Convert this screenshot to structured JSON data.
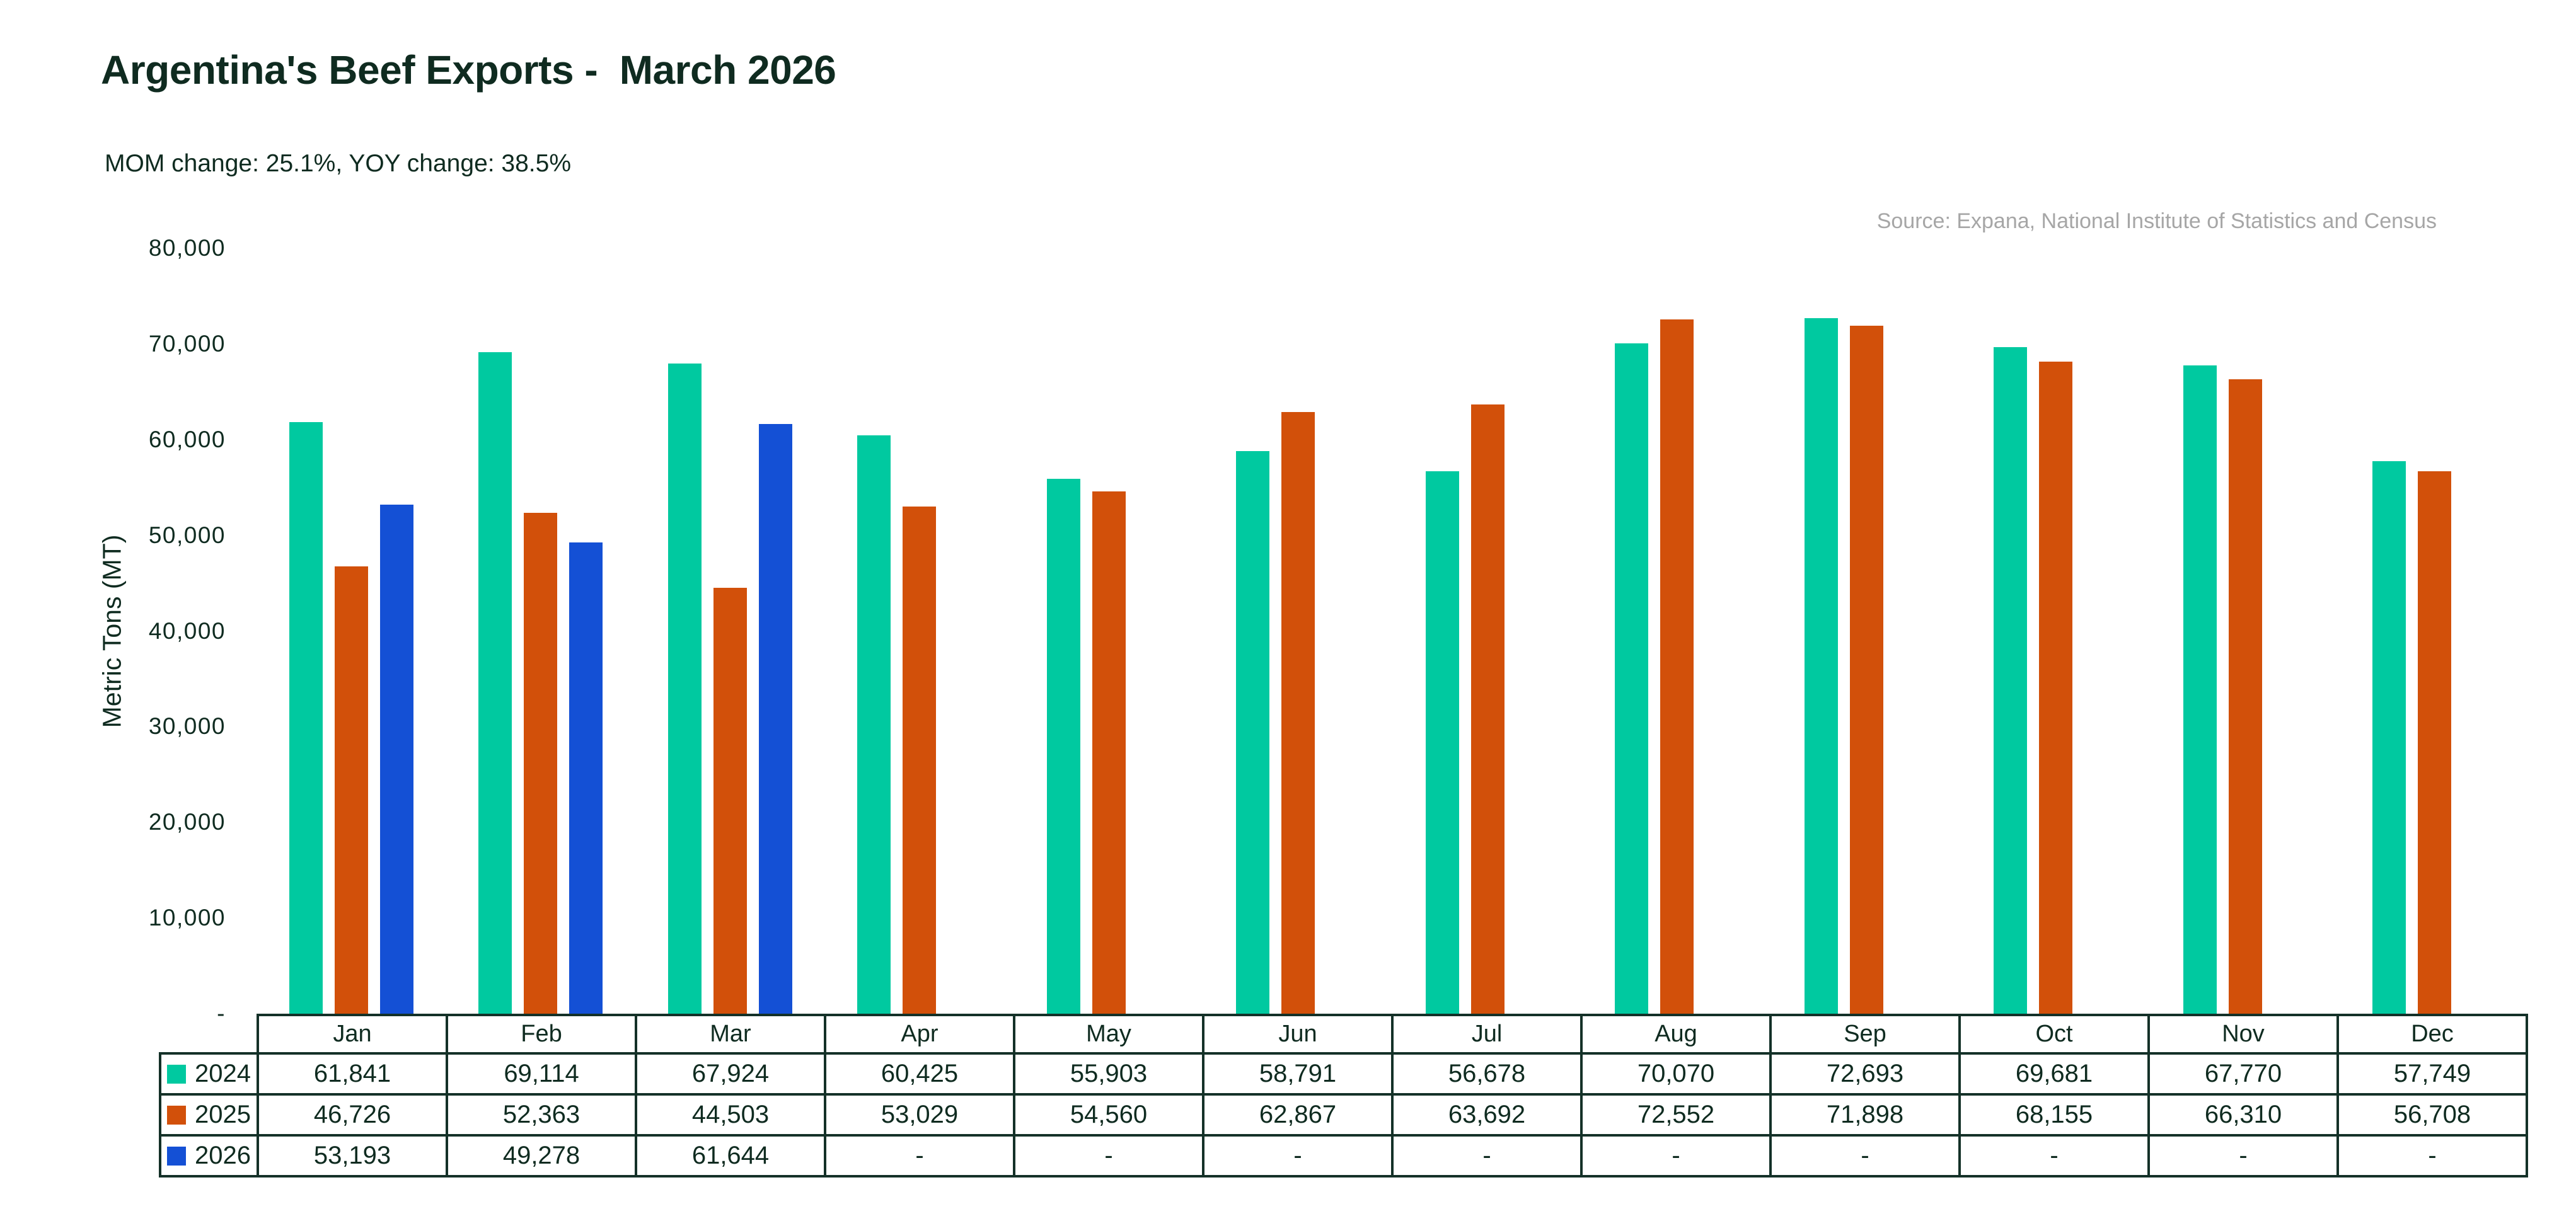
{
  "header": {
    "title": "Argentina's Beef Exports -  March 2026",
    "subtitle": "MOM change: 25.1%, YOY change: 38.5%",
    "source": "Source: Expana, National Institute of Statistics and Census"
  },
  "colors": {
    "series_2024": "#00C9A0",
    "series_2025": "#D2500A",
    "series_2026": "#1450D5",
    "ink": "#0F2B20",
    "table_border": "#143128",
    "source_gray": "#A6A6A6",
    "background": "#FFFFFF"
  },
  "chart_data": {
    "type": "bar",
    "title": "Argentina's Beef Exports -  March 2026",
    "subtitle": "MOM change: 25.1%, YOY change: 38.5%",
    "source": "Source: Expana, National Institute of Statistics and Census",
    "xlabel": "",
    "ylabel": "Metric Tons (MT)",
    "ylim": [
      0,
      80000
    ],
    "grid": false,
    "legend_position": "table-left",
    "categories": [
      "Jan",
      "Feb",
      "Mar",
      "Apr",
      "May",
      "Jun",
      "Jul",
      "Aug",
      "Sep",
      "Oct",
      "Nov",
      "Dec"
    ],
    "series": [
      {
        "name": "2024",
        "color": "#00C9A0",
        "values": [
          61841,
          69114,
          67924,
          60425,
          55903,
          58791,
          56678,
          70070,
          72693,
          69681,
          67770,
          57749
        ]
      },
      {
        "name": "2025",
        "color": "#D2500A",
        "values": [
          46726,
          52363,
          44503,
          53029,
          54560,
          62867,
          63692,
          72552,
          71898,
          68155,
          66310,
          56708
        ]
      },
      {
        "name": "2026",
        "color": "#1450D5",
        "values": [
          53193,
          49278,
          61644,
          null,
          null,
          null,
          null,
          null,
          null,
          null,
          null,
          null
        ]
      }
    ],
    "yticks": [
      {
        "value": 80000,
        "label": "80,000"
      },
      {
        "value": 70000,
        "label": "70,000"
      },
      {
        "value": 60000,
        "label": "60,000"
      },
      {
        "value": 50000,
        "label": "50,000"
      },
      {
        "value": 40000,
        "label": "40,000"
      },
      {
        "value": 30000,
        "label": "30,000"
      },
      {
        "value": 20000,
        "label": "20,000"
      },
      {
        "value": 10000,
        "label": "10,000"
      },
      {
        "value": 0,
        "label": "-"
      }
    ],
    "empty_value_label": "-"
  }
}
